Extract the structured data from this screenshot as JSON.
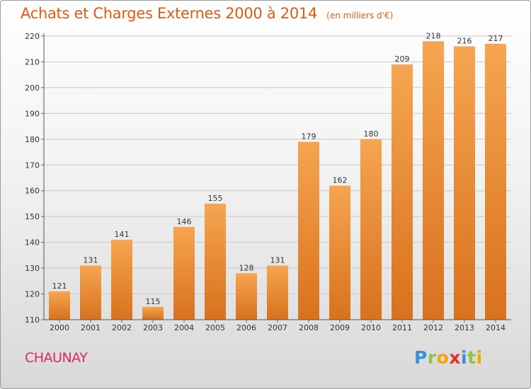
{
  "title": "Achats et Charges Externes 2000 à 2014",
  "subtitle": "(en milliers d'€)",
  "location": "CHAUNAY",
  "logo": {
    "letters": [
      {
        "ch": "P",
        "color": "#3a8fd6"
      },
      {
        "ch": "r",
        "color": "#8cc63f"
      },
      {
        "ch": "o",
        "color": "#f7a500"
      },
      {
        "ch": "x",
        "color": "#e0302a"
      },
      {
        "ch": "i",
        "color": "#3a8fd6"
      },
      {
        "ch": "t",
        "color": "#8cc63f"
      },
      {
        "ch": "i",
        "color": "#f7a500"
      }
    ]
  },
  "colors": {
    "bar_light": "#f6a550",
    "bar_dark": "#d9711d",
    "text": "#333333",
    "grid": "#c8c8c8"
  },
  "chart_data": {
    "type": "bar",
    "title": "Achats et Charges Externes 2000 à 2014",
    "subtitle": "(en milliers d'€)",
    "xlabel": "",
    "ylabel": "",
    "categories": [
      "2000",
      "2001",
      "2002",
      "2003",
      "2004",
      "2005",
      "2006",
      "2007",
      "2008",
      "2009",
      "2010",
      "2011",
      "2012",
      "2013",
      "2014"
    ],
    "values": [
      121,
      131,
      141,
      115,
      146,
      155,
      128,
      131,
      179,
      162,
      180,
      209,
      218,
      216,
      217
    ],
    "ylim": [
      110,
      220
    ],
    "yticks": [
      110,
      120,
      130,
      140,
      150,
      160,
      170,
      180,
      190,
      200,
      210,
      220
    ],
    "grid": true,
    "data_labels": true
  }
}
